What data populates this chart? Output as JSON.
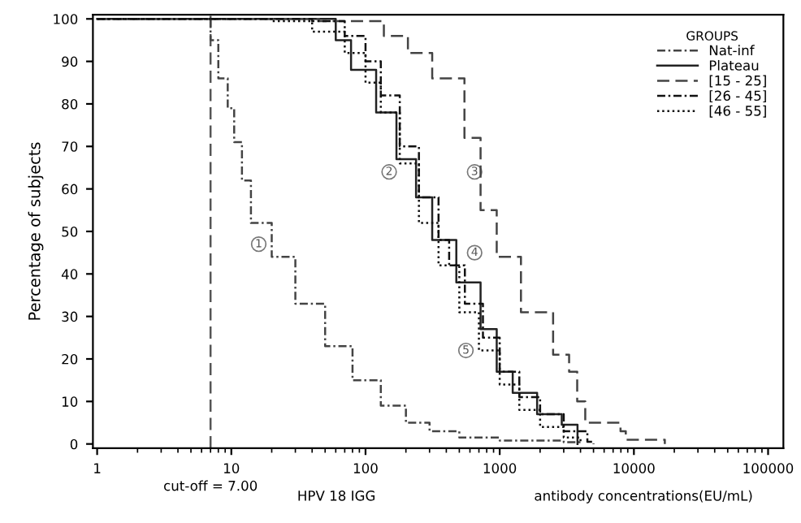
{
  "chart_data": {
    "type": "step",
    "ylabel": "Percentage of subjects",
    "xlabel": "antibody concentrations(EU/mL)",
    "legend_title": "GROUPS",
    "legend": "top right",
    "log": "x",
    "xlim": [
      0.93,
      130000
    ],
    "xticks": [
      1,
      10,
      100,
      1000,
      10000,
      100000
    ],
    "ylim": [
      -1,
      101
    ],
    "yticks": [
      0,
      10,
      20,
      30,
      40,
      50,
      60,
      70,
      80,
      90,
      100
    ],
    "grid": false,
    "marker": "none",
    "ref_lines": [
      {
        "axis": "x",
        "value": 7,
        "label": "cut-off = 7.00",
        "line_style": "dashed",
        "color": "#555555"
      }
    ],
    "annotations": [
      "HPV 18 IGG",
      {
        "text": "1",
        "x": 16,
        "y": 47
      },
      {
        "text": "2",
        "x": 150,
        "y": 64
      },
      {
        "text": "3",
        "x": 650,
        "y": 64
      },
      {
        "text": "4",
        "x": 650,
        "y": 45
      },
      {
        "text": "5",
        "x": 560,
        "y": 22
      }
    ],
    "series": [
      {
        "name": "Nat-inf",
        "color": "#444444",
        "line_style": "dashdot",
        "x": [
          1,
          7,
          7,
          8,
          9.4,
          10.5,
          12,
          14,
          20,
          30,
          50,
          80,
          130,
          200,
          300,
          500,
          1000,
          3000,
          4000
        ],
        "values": [
          100,
          100,
          95,
          86,
          79,
          71,
          62,
          52,
          44,
          33,
          23,
          15,
          9,
          5,
          3,
          1.5,
          0.8,
          0.4,
          0
        ]
      },
      {
        "name": "Plateau",
        "color": "#222222",
        "line_style": "solid",
        "x": [
          1,
          30,
          60,
          78,
          120,
          170,
          238,
          314,
          475,
          720,
          950,
          1250,
          1900,
          2900,
          3800
        ],
        "values": [
          100,
          100,
          95,
          88,
          78,
          67,
          58,
          48,
          38,
          27,
          17,
          12,
          7,
          4.5,
          0
        ]
      },
      {
        "name": "[15 - 25]",
        "color": "#444444",
        "line_style": "dashed",
        "x": [
          1,
          45,
          137,
          207,
          314,
          546,
          720,
          950,
          1440,
          2500,
          3290,
          3780,
          4340,
          7950,
          8700,
          17000
        ],
        "values": [
          100,
          99.5,
          96,
          92,
          86,
          72,
          55,
          44,
          31,
          21,
          17,
          10,
          5,
          3,
          1,
          0
        ]
      },
      {
        "name": "[26 - 45]",
        "color": "#111111",
        "line_style": "dashdot",
        "x": [
          1,
          40,
          70,
          100,
          130,
          180,
          250,
          350,
          420,
          550,
          750,
          1000,
          1400,
          2000,
          3000,
          4500,
          5000
        ],
        "values": [
          100,
          99.5,
          96,
          90,
          82,
          70,
          58,
          48,
          42,
          33,
          25,
          17,
          11,
          7,
          3,
          0.5,
          0
        ]
      },
      {
        "name": "[46 - 55]",
        "color": "#111111",
        "line_style": "dotted",
        "x": [
          1,
          20,
          40,
          70,
          100,
          130,
          180,
          250,
          350,
          500,
          700,
          1000,
          1400,
          2000,
          3000,
          4000
        ],
        "values": [
          100,
          99.5,
          97,
          92,
          85,
          78,
          66,
          52,
          42,
          31,
          22,
          14,
          8,
          4,
          1.5,
          0
        ]
      }
    ]
  }
}
